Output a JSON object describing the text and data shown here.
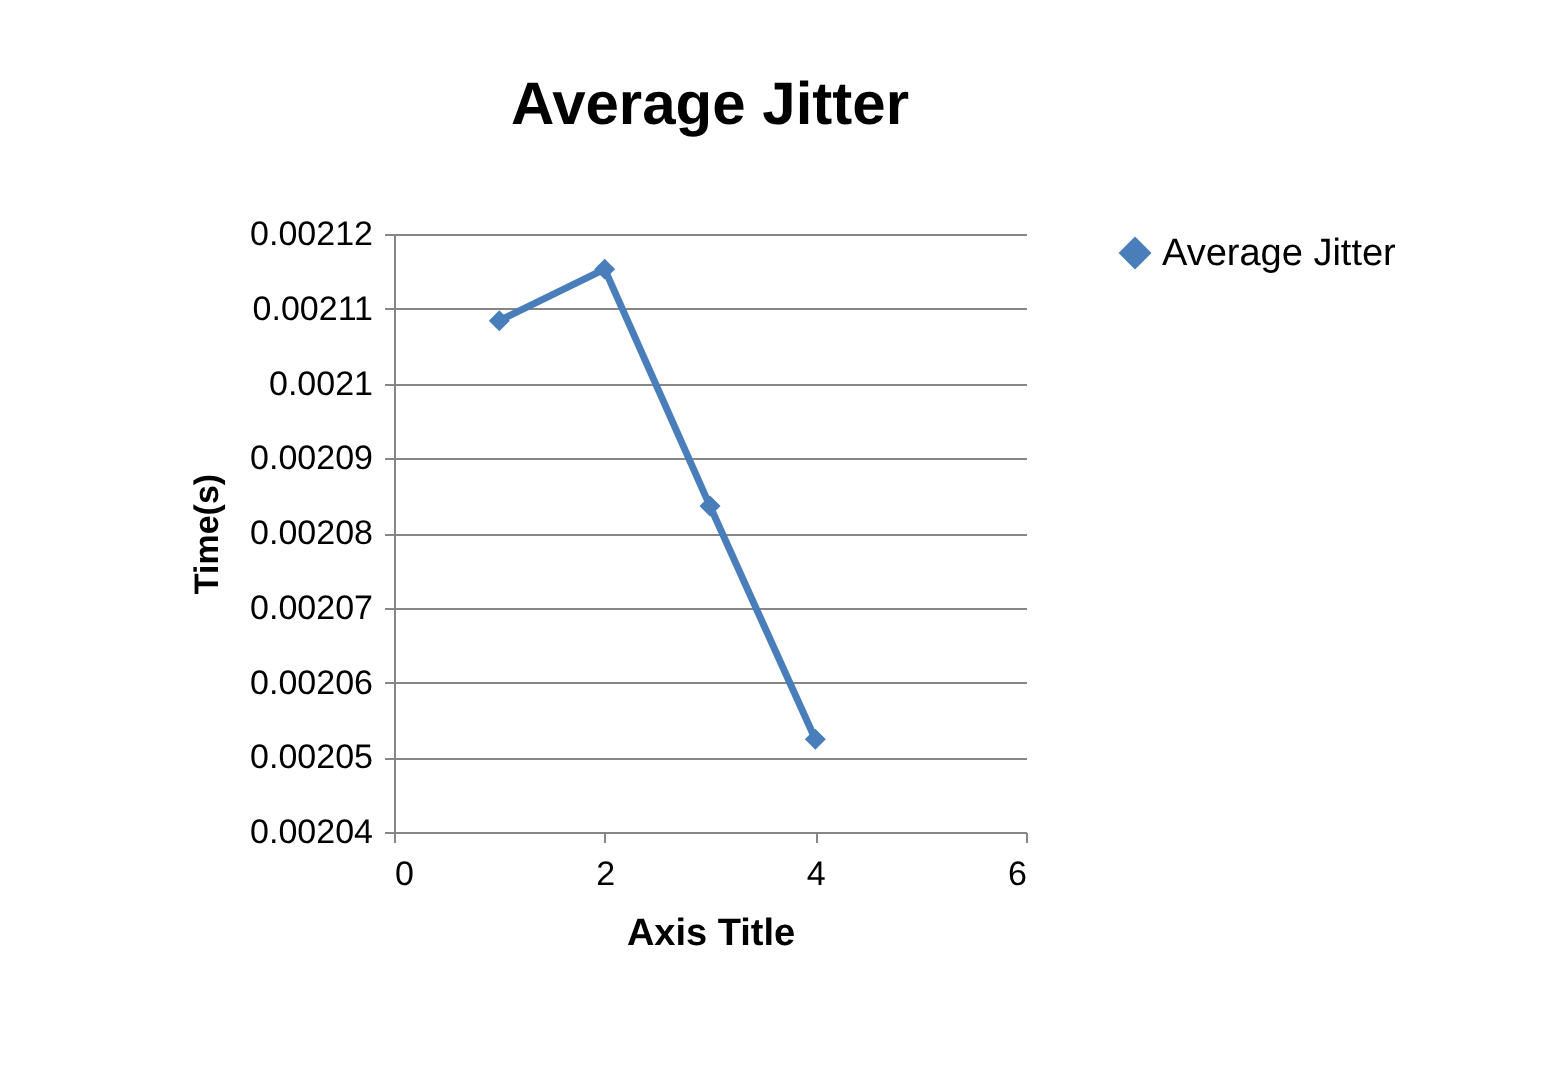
{
  "chart_data": {
    "type": "line",
    "title": "Average Jitter",
    "xlabel": "Axis Title",
    "ylabel": "Time(s)",
    "x": [
      1,
      2,
      3,
      4
    ],
    "series": [
      {
        "name": "Average Jitter",
        "color": "#4a7ebb",
        "values": [
          0.0021084,
          0.0021153,
          0.0020836,
          0.0020524
        ]
      }
    ],
    "xlim": [
      0,
      6
    ],
    "xticks": [
      0,
      2,
      4,
      6
    ],
    "ylim": [
      0.00204,
      0.00212
    ],
    "yticks": [
      0.00204,
      0.00205,
      0.00206,
      0.00207,
      0.00208,
      0.00209,
      0.0021,
      0.00211,
      0.00212
    ],
    "grid": "y",
    "legend": "right",
    "marker": "diamond",
    "line_style": "solid"
  }
}
